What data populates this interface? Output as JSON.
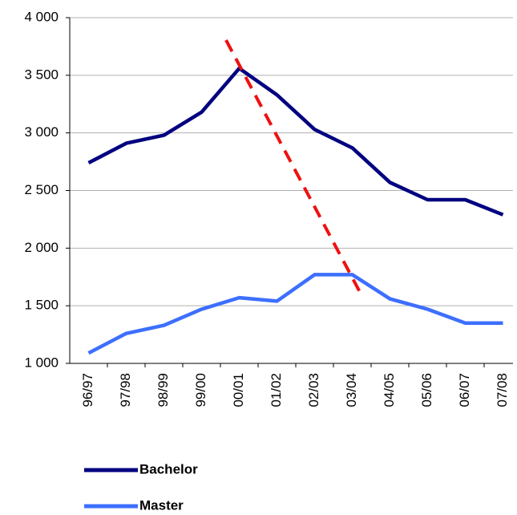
{
  "chart_data": {
    "type": "line",
    "categories": [
      "96/97",
      "97/98",
      "98/99",
      "99/00",
      "00/01",
      "01/02",
      "02/03",
      "03/04",
      "04/05",
      "05/06",
      "06/07",
      "07/08"
    ],
    "series": [
      {
        "name": "Bachelor",
        "color": "#000080",
        "values": [
          2740,
          2910,
          2980,
          3180,
          3560,
          3330,
          3030,
          2870,
          2570,
          2420,
          2420,
          2290
        ]
      },
      {
        "name": "Master",
        "color": "#3d6fff",
        "values": [
          1090,
          1260,
          1330,
          1470,
          1570,
          1540,
          1770,
          1770,
          1560,
          1470,
          1350,
          1350
        ]
      }
    ],
    "ylim": [
      1000,
      4000
    ],
    "yticks": [
      {
        "value": 1000,
        "label": "1 000"
      },
      {
        "value": 1500,
        "label": "1 500"
      },
      {
        "value": 2000,
        "label": "2 000"
      },
      {
        "value": 2500,
        "label": "2 500"
      },
      {
        "value": 3000,
        "label": "3 000"
      },
      {
        "value": 3500,
        "label": "3 500"
      },
      {
        "value": 4000,
        "label": "4 000"
      }
    ],
    "grid": true,
    "legend": "bottom"
  }
}
